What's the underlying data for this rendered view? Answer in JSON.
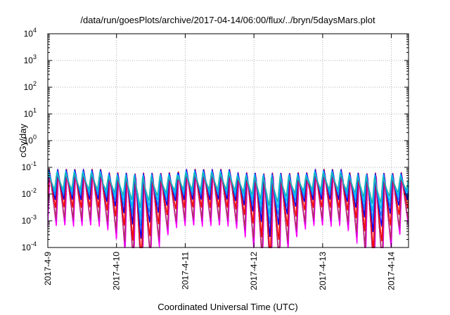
{
  "chart_data": {
    "type": "line",
    "title": "/data/run/goesPlots/archive/2017-04-14/06:00/flux/../bryn/5daysMars.plot",
    "xlabel": "Coordinated Universal Time (UTC)",
    "ylabel": "cGy/day",
    "yscale": "log",
    "ylim": [
      0.0001,
      10000
    ],
    "y_ticks": [
      {
        "base": "10",
        "exp": "-4"
      },
      {
        "base": "10",
        "exp": "-3"
      },
      {
        "base": "10",
        "exp": "-2"
      },
      {
        "base": "10",
        "exp": "-1"
      },
      {
        "base": "10",
        "exp": "0"
      },
      {
        "base": "10",
        "exp": "1"
      },
      {
        "base": "10",
        "exp": "2"
      },
      {
        "base": "10",
        "exp": "3"
      },
      {
        "base": "10",
        "exp": "4"
      }
    ],
    "xlim": [
      "2017-04-09 00:00",
      "2017-04-14 06:00"
    ],
    "x_ticks": [
      "2017-4-9",
      "2017-4-10",
      "2017-4-11",
      "2017-4-12",
      "2017-4-13",
      "2017-4-14"
    ],
    "grid": true,
    "legend": "none",
    "pattern": {
      "shape": "sawtooth",
      "cycles_per_day": 8,
      "peak_y": 0.09,
      "quiet_ranges_days": [
        [
          0.8,
          1.9
        ],
        [
          2.7,
          3.8
        ],
        [
          4.3,
          5.25
        ]
      ],
      "note_visible": ""
    },
    "series": [
      {
        "color": "#ff00ff",
        "peak": 0.06,
        "trough": 0.0006
      },
      {
        "color": "#cc00cc",
        "peak": 0.065,
        "trough": 0.0009
      },
      {
        "color": "#b03060",
        "peak": 0.07,
        "trough": 0.0012
      },
      {
        "color": "#ff0000",
        "peak": 0.09,
        "trough": 0.003
      },
      {
        "color": "#0000ff",
        "peak": 0.085,
        "trough": 0.006
      },
      {
        "color": "#1e90ff",
        "peak": 0.075,
        "trough": 0.009
      },
      {
        "color": "#00bfff",
        "peak": 0.07,
        "trough": 0.012
      },
      {
        "color": "#20b2aa",
        "peak": 0.06,
        "trough": 0.015
      }
    ]
  }
}
